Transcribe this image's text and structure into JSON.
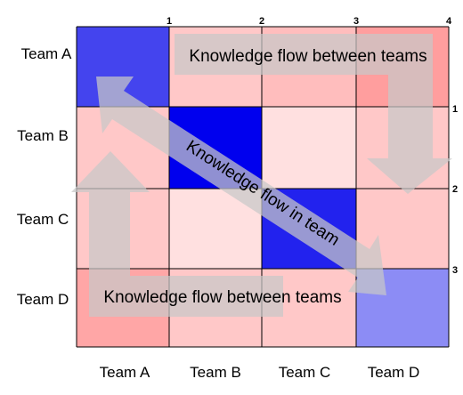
{
  "rows": [
    "Team A",
    "Team B",
    "Team C",
    "Team D"
  ],
  "columns": [
    "Team A",
    "Team B",
    "Team C",
    "Team D"
  ],
  "top_ticks": [
    "1",
    "2",
    "3",
    "4"
  ],
  "right_ticks": [
    "1",
    "2",
    "3"
  ],
  "cell_colors": [
    [
      "#4444ee",
      "#ffc8c8",
      "#ffbdbd",
      "#ff9e9e"
    ],
    [
      "#ffc8c8",
      "#0000ee",
      "#ffe0e0",
      "#ffc8c8"
    ],
    [
      "#ffc8c8",
      "#ffe0e0",
      "#2222ee",
      "#ffc8c8"
    ],
    [
      "#ffa6a6",
      "#ffc8c8",
      "#ffc8c8",
      "#8c8cf5"
    ]
  ],
  "annotations": {
    "top_flow": "Knowledge flow between teams",
    "diagonal_flow": "Knowledge flow in team",
    "bottom_flow": "Knowledge flow between teams"
  },
  "arrow_color": "#c8c8c8"
}
